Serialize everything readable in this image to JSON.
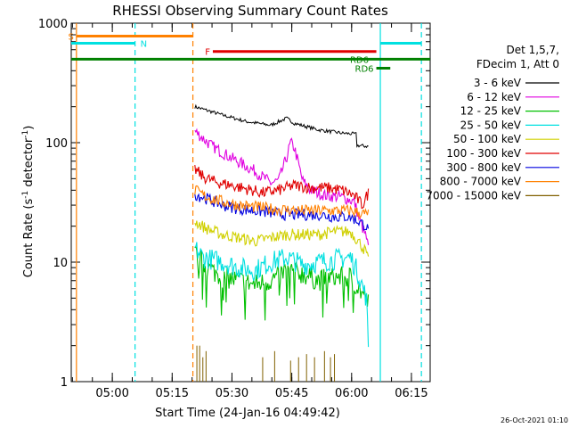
{
  "chart_data": {
    "type": "line",
    "title": "RHESSI Observing Summary Count Rates",
    "xlabel": "Start Time (24-Jan-16 04:49:42)",
    "ylabel_main": "Count Rate (s",
    "ylabel_sup1": "-1",
    "ylabel_mid": " detector",
    "ylabel_sup2": "-1",
    "ylabel_end": ")",
    "y_scale": "log",
    "ylim": [
      1,
      1000
    ],
    "xlim_minutes": [
      0,
      90
    ],
    "x_ticks": [
      {
        "t": 10.3,
        "label": "05:00"
      },
      {
        "t": 25.3,
        "label": "05:15"
      },
      {
        "t": 40.3,
        "label": "05:30"
      },
      {
        "t": 55.3,
        "label": "05:45"
      },
      {
        "t": 70.3,
        "label": "06:00"
      },
      {
        "t": 85.3,
        "label": "06:15"
      }
    ],
    "y_ticks": [
      {
        "v": 1,
        "label": "1"
      },
      {
        "v": 10,
        "label": "10"
      },
      {
        "v": 100,
        "label": "100"
      },
      {
        "v": 1000,
        "label": "1000"
      }
    ],
    "legend_header": [
      "Det 1,5,7,",
      "FDecim 1, Att 0"
    ],
    "series": [
      {
        "name": "3 - 6 keV",
        "color": "#000000",
        "points": [
          [
            31,
            200
          ],
          [
            38,
            170
          ],
          [
            44,
            150
          ],
          [
            50,
            140
          ],
          [
            54,
            160
          ],
          [
            56,
            145
          ],
          [
            62,
            128
          ],
          [
            68,
            120
          ],
          [
            71.5,
            118
          ],
          [
            71.5,
            95
          ],
          [
            74.5,
            93
          ],
          [
            74.5,
            40
          ]
        ]
      },
      {
        "name": "6 - 12 keV",
        "color": "#e000e0",
        "points": [
          [
            31,
            125
          ],
          [
            35,
            95
          ],
          [
            40,
            75
          ],
          [
            46,
            58
          ],
          [
            50,
            46
          ],
          [
            52,
            48
          ],
          [
            54,
            75
          ],
          [
            55,
            100
          ],
          [
            56,
            90
          ],
          [
            58,
            48
          ],
          [
            60,
            40
          ],
          [
            64,
            36
          ],
          [
            68,
            35
          ],
          [
            71,
            32
          ],
          [
            72,
            24
          ],
          [
            74,
            16
          ],
          [
            74.5,
            13
          ]
        ]
      },
      {
        "name": "12 - 25 keV",
        "color": "#00c000",
        "points": [
          [
            31,
            12
          ],
          [
            34,
            9
          ],
          [
            38,
            7.5
          ],
          [
            42,
            7
          ],
          [
            46,
            6.5
          ],
          [
            50,
            7
          ],
          [
            54,
            8.5
          ],
          [
            58,
            8
          ],
          [
            62,
            7
          ],
          [
            66,
            7.5
          ],
          [
            70,
            7.5
          ],
          [
            72,
            6
          ],
          [
            74,
            5
          ],
          [
            74.5,
            4.5
          ]
        ]
      },
      {
        "name": "25 - 50 keV",
        "color": "#00e0e0",
        "points": [
          [
            31,
            13
          ],
          [
            33,
            11
          ],
          [
            38,
            10
          ],
          [
            42,
            9
          ],
          [
            46,
            8.5
          ],
          [
            50,
            10
          ],
          [
            54,
            11
          ],
          [
            58,
            9.5
          ],
          [
            62,
            10
          ],
          [
            66,
            10.5
          ],
          [
            70,
            11
          ],
          [
            72,
            8
          ],
          [
            74,
            5
          ],
          [
            74.5,
            2
          ]
        ]
      },
      {
        "name": "50 - 100 keV",
        "color": "#d0d000",
        "points": [
          [
            31,
            22
          ],
          [
            34,
            19
          ],
          [
            38,
            17
          ],
          [
            42,
            16
          ],
          [
            46,
            15
          ],
          [
            50,
            16
          ],
          [
            54,
            17
          ],
          [
            58,
            17
          ],
          [
            62,
            17
          ],
          [
            66,
            18
          ],
          [
            70,
            18
          ],
          [
            72,
            15
          ],
          [
            74,
            12
          ],
          [
            74.5,
            10
          ]
        ]
      },
      {
        "name": "100 - 300 keV",
        "color": "#e00000",
        "points": [
          [
            31,
            60
          ],
          [
            33,
            52
          ],
          [
            36,
            47
          ],
          [
            40,
            44
          ],
          [
            44,
            41
          ],
          [
            48,
            38
          ],
          [
            52,
            40
          ],
          [
            56,
            44
          ],
          [
            60,
            42
          ],
          [
            64,
            42
          ],
          [
            68,
            40
          ],
          [
            71,
            36
          ],
          [
            73,
            30
          ],
          [
            74.5,
            38
          ]
        ]
      },
      {
        "name": "300 - 800 keV",
        "color": "#0000e0",
        "points": [
          [
            31,
            37
          ],
          [
            34,
            34
          ],
          [
            38,
            30
          ],
          [
            42,
            28
          ],
          [
            46,
            27
          ],
          [
            50,
            26
          ],
          [
            54,
            25
          ],
          [
            58,
            25
          ],
          [
            62,
            25
          ],
          [
            66,
            24
          ],
          [
            70,
            24
          ],
          [
            72,
            22
          ],
          [
            74,
            20
          ],
          [
            74.5,
            18
          ]
        ]
      },
      {
        "name": "800 - 7000 keV",
        "color": "#ff8000",
        "points": [
          [
            31,
            40
          ],
          [
            34,
            35
          ],
          [
            38,
            32
          ],
          [
            42,
            30
          ],
          [
            46,
            29
          ],
          [
            50,
            28
          ],
          [
            54,
            27.5
          ],
          [
            58,
            27
          ],
          [
            62,
            27
          ],
          [
            66,
            27
          ],
          [
            70,
            27
          ],
          [
            72,
            26
          ],
          [
            74,
            25
          ],
          [
            74.5,
            26
          ]
        ]
      },
      {
        "name": "7000 - 15000 keV",
        "color": "#806000",
        "points": [
          [
            31,
            1
          ],
          [
            33,
            1
          ],
          [
            48,
            1
          ],
          [
            58,
            1
          ],
          [
            66,
            1
          ]
        ]
      }
    ],
    "vertical_markers": [
      {
        "t": 1.3,
        "color": "#ff8000",
        "style": "solid"
      },
      {
        "t": 16,
        "color": "#00e0e0",
        "style": "dashed"
      },
      {
        "t": 30.5,
        "color": "#ff8000",
        "style": "dashed"
      },
      {
        "t": 77.5,
        "color": "#00e0e0",
        "style": "solid"
      },
      {
        "t": 87.8,
        "color": "#00e0e0",
        "style": "dashed"
      }
    ],
    "flag_bars": [
      {
        "label": "S",
        "color": "#ff8000",
        "t0": 1.3,
        "t1": 30.5,
        "y": 780,
        "label_side": "left"
      },
      {
        "label": "N",
        "color": "#00e0e0",
        "t0": 0,
        "t1": 16,
        "y": 680,
        "label_side": "right"
      },
      {
        "label": "N",
        "color": "#00e0e0",
        "t0": 77.5,
        "t1": 87.8,
        "y": 680,
        "label_side": "none"
      },
      {
        "label": "F",
        "color": "#e00000",
        "t0": 35.5,
        "t1": 76.5,
        "y": 580,
        "label_side": "left"
      },
      {
        "label": "RD6",
        "color": "#008000",
        "t0": 0,
        "t1": 90,
        "y": 500,
        "label_side": "end"
      },
      {
        "label": "RD6",
        "color": "#008000",
        "t0": 76.5,
        "t1": 80,
        "y": 420,
        "label_side": "left"
      }
    ],
    "footer_date": "26-Oct-2021 01:10"
  }
}
